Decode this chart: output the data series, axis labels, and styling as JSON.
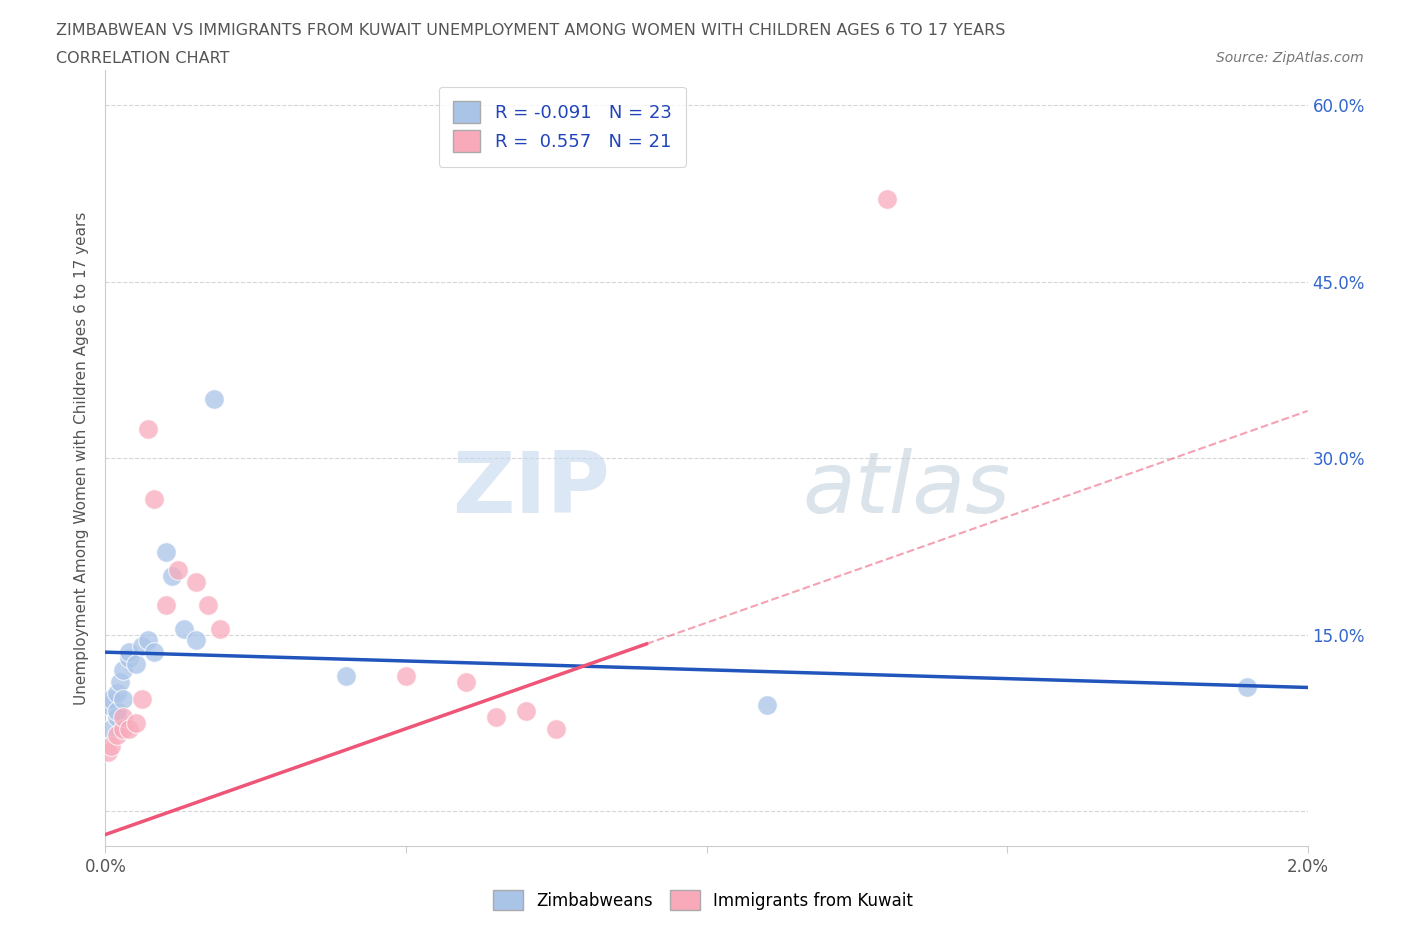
{
  "title_line1": "ZIMBABWEAN VS IMMIGRANTS FROM KUWAIT UNEMPLOYMENT AMONG WOMEN WITH CHILDREN AGES 6 TO 17 YEARS",
  "title_line2": "CORRELATION CHART",
  "source": "Source: ZipAtlas.com",
  "ylabel": "Unemployment Among Women with Children Ages 6 to 17 years",
  "xlim": [
    0.0,
    0.02
  ],
  "ylim": [
    -0.03,
    0.63
  ],
  "yticks": [
    0.0,
    0.15,
    0.3,
    0.45,
    0.6
  ],
  "ytick_labels": [
    "",
    "15.0%",
    "30.0%",
    "45.0%",
    "60.0%"
  ],
  "xticks": [
    0.0,
    0.005,
    0.01,
    0.015,
    0.02
  ],
  "xtick_labels": [
    "0.0%",
    "",
    "",
    "",
    "2.0%"
  ],
  "blue_color": "#aac4e8",
  "pink_color": "#f8aabb",
  "blue_line_color": "#2255bb",
  "pink_line_color": "#ee5577",
  "R_blue": -0.091,
  "N_blue": 23,
  "R_pink": 0.557,
  "N_pink": 21,
  "zimbabwean_x": [
    5e-05,
    0.0001,
    0.0001,
    0.0002,
    0.0002,
    0.0002,
    0.00025,
    0.0003,
    0.0003,
    0.0004,
    0.0004,
    0.0005,
    0.0006,
    0.0007,
    0.0008,
    0.001,
    0.0011,
    0.0013,
    0.0015,
    0.0018,
    0.004,
    0.011,
    0.019
  ],
  "zimbabwean_y": [
    0.09,
    0.07,
    0.095,
    0.08,
    0.085,
    0.1,
    0.11,
    0.095,
    0.12,
    0.13,
    0.135,
    0.125,
    0.14,
    0.145,
    0.135,
    0.22,
    0.2,
    0.155,
    0.145,
    0.35,
    0.115,
    0.09,
    0.105
  ],
  "kuwait_x": [
    5e-05,
    0.0001,
    0.0002,
    0.0003,
    0.0003,
    0.0004,
    0.0005,
    0.0006,
    0.0007,
    0.0008,
    0.001,
    0.0012,
    0.0015,
    0.0017,
    0.0019,
    0.005,
    0.006,
    0.0065,
    0.007,
    0.0075,
    0.013
  ],
  "kuwait_y": [
    0.05,
    0.055,
    0.065,
    0.07,
    0.08,
    0.07,
    0.075,
    0.095,
    0.325,
    0.265,
    0.175,
    0.205,
    0.195,
    0.175,
    0.155,
    0.115,
    0.11,
    0.08,
    0.085,
    0.07,
    0.52
  ],
  "watermark_zip": "ZIP",
  "watermark_atlas": "atlas",
  "background_color": "#ffffff",
  "grid_color": "#cccccc"
}
